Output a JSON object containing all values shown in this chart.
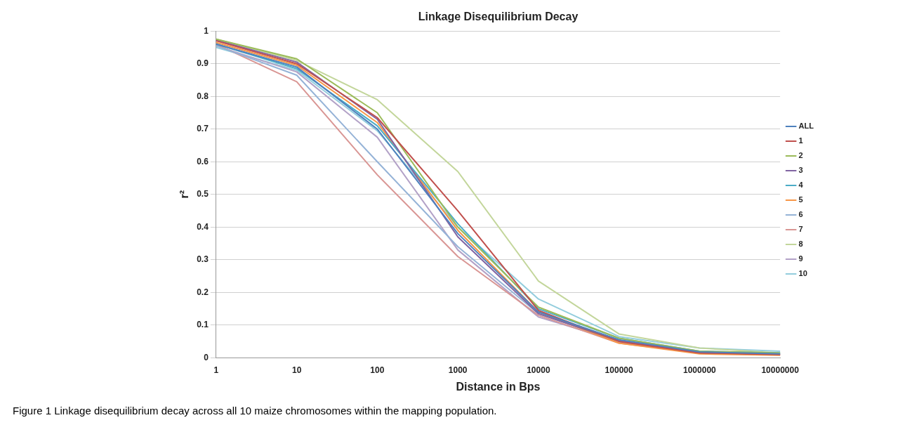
{
  "chart_data": {
    "type": "line",
    "title": "Linkage Disequilibrium Decay",
    "xlabel": "Distance in Bps",
    "ylabel": "r²",
    "categories": [
      "1",
      "10",
      "100",
      "1000",
      "10000",
      "100000",
      "1000000",
      "10000000"
    ],
    "ylim": [
      0,
      1
    ],
    "yticks": [
      0,
      0.1,
      0.2,
      0.3,
      0.4,
      0.5,
      0.6,
      0.7,
      0.8,
      0.9,
      1
    ],
    "grid": "y",
    "legend": "right",
    "marker": "none",
    "series": [
      {
        "name": "ALL",
        "color": "#4f81bd",
        "values": [
          0.96,
          0.89,
          0.7,
          0.38,
          0.14,
          0.055,
          0.018,
          0.012
        ]
      },
      {
        "name": "1",
        "color": "#c0504d",
        "values": [
          0.97,
          0.9,
          0.735,
          0.45,
          0.145,
          0.05,
          0.015,
          0.01
        ]
      },
      {
        "name": "2",
        "color": "#9bbb59",
        "values": [
          0.975,
          0.915,
          0.75,
          0.4,
          0.155,
          0.06,
          0.02,
          0.015
        ]
      },
      {
        "name": "3",
        "color": "#8064a2",
        "values": [
          0.972,
          0.905,
          0.73,
          0.37,
          0.135,
          0.052,
          0.016,
          0.011
        ]
      },
      {
        "name": "4",
        "color": "#4bacc6",
        "values": [
          0.96,
          0.885,
          0.71,
          0.41,
          0.15,
          0.06,
          0.02,
          0.015
        ]
      },
      {
        "name": "5",
        "color": "#f79646",
        "values": [
          0.965,
          0.895,
          0.72,
          0.39,
          0.14,
          0.045,
          0.012,
          0.008
        ]
      },
      {
        "name": "6",
        "color": "#95b3d7",
        "values": [
          0.955,
          0.865,
          0.6,
          0.34,
          0.135,
          0.05,
          0.015,
          0.01
        ]
      },
      {
        "name": "7",
        "color": "#d99694",
        "values": [
          0.96,
          0.845,
          0.56,
          0.31,
          0.13,
          0.045,
          0.015,
          0.01
        ]
      },
      {
        "name": "8",
        "color": "#c3d69b",
        "values": [
          0.975,
          0.91,
          0.79,
          0.57,
          0.235,
          0.073,
          0.03,
          0.015
        ]
      },
      {
        "name": "9",
        "color": "#b3a2c7",
        "values": [
          0.955,
          0.875,
          0.675,
          0.33,
          0.125,
          0.05,
          0.015,
          0.01
        ]
      },
      {
        "name": "10",
        "color": "#93cddd",
        "values": [
          0.95,
          0.88,
          0.695,
          0.4,
          0.18,
          0.065,
          0.03,
          0.02
        ]
      }
    ],
    "annotations": [
      "Figure 1 Linkage disequilibrium decay across all 10 maize chromosomes within the mapping population."
    ]
  }
}
